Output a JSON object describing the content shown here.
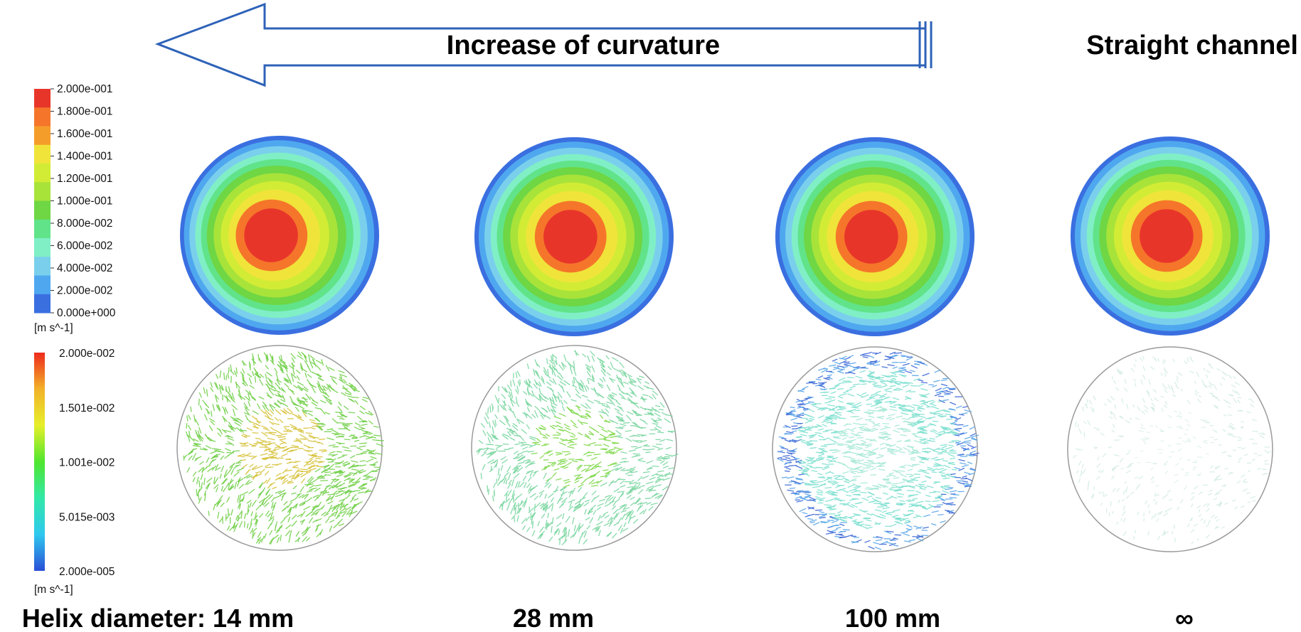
{
  "header": {
    "arrow_label": "Increase of curvature",
    "straight_label": "Straight channel"
  },
  "legends": {
    "velocity": {
      "ticks": [
        "2.000e-001",
        "1.800e-001",
        "1.600e-001",
        "1.400e-001",
        "1.200e-001",
        "1.000e-001",
        "8.000e-002",
        "6.000e-002",
        "4.000e-002",
        "2.000e-002",
        "0.000e+000"
      ],
      "unit": "[m s^-1]",
      "colors": [
        "#e8352a",
        "#f5762a",
        "#f59d2a",
        "#f0e43a",
        "#d2ec35",
        "#a8e33a",
        "#6fd644",
        "#61e38a",
        "#80efc6",
        "#7ad0ec",
        "#4fa8ef",
        "#3a6fe0"
      ]
    },
    "vector": {
      "ticks": [
        "2.000e-002",
        "1.501e-002",
        "1.001e-002",
        "5.015e-003",
        "2.000e-005"
      ],
      "unit": "[m s^-1]",
      "gradient": [
        "#ee2a1c",
        "#f2b22a",
        "#e6ef2a",
        "#4fe62e",
        "#32e8a8",
        "#2fc8ef",
        "#2a4fd6"
      ]
    }
  },
  "cases": [
    {
      "label": "Helix diameter: 14 mm",
      "vector_color": "#72d04a",
      "vector_core": "#d6c23a",
      "vector_density": 0.85
    },
    {
      "label": "28 mm",
      "vector_color": "#7ad6a0",
      "vector_core": "#7fd84a",
      "vector_density": 0.75
    },
    {
      "label": "100 mm",
      "vector_color": "#7fe0d0",
      "vector_core": "#a6e8d6",
      "vector_density": 1.0
    },
    {
      "label": "∞",
      "vector_color": "#c9e8dc",
      "vector_core": "#d8efe4",
      "vector_density": 0.35
    }
  ]
}
